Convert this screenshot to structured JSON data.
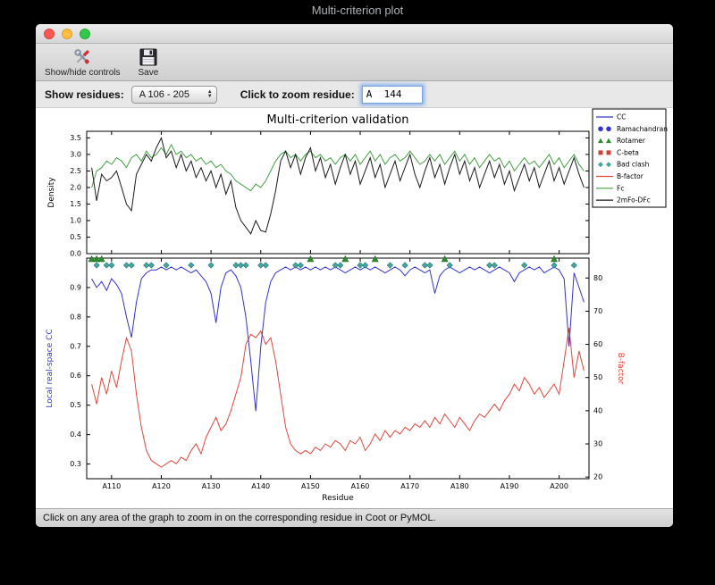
{
  "screen": {
    "title": "Multi-criterion plot"
  },
  "toolbar": {
    "show_hide_label": "Show/hide controls",
    "save_label": "Save"
  },
  "controls": {
    "show_residues_label": "Show residues:",
    "residue_range_value": "A 106 - 205",
    "zoom_residue_label": "Click to zoom residue:",
    "zoom_residue_value": "A  144"
  },
  "status": {
    "text": "Click on any area of the graph to zoom in on the corresponding residue in Coot or PyMOL."
  },
  "legend": [
    {
      "label": "CC",
      "type": "line",
      "color": "#3333cc"
    },
    {
      "label": "Ramachandran",
      "type": "circle",
      "color": "#3333cc"
    },
    {
      "label": "Rotamer",
      "type": "triangle",
      "color": "#2e8b2e"
    },
    {
      "label": "C-beta",
      "type": "square",
      "color": "#cc4433"
    },
    {
      "label": "Bad clash",
      "type": "diamond",
      "color": "#45a5a0"
    },
    {
      "label": "B-factor",
      "type": "line",
      "color": "#e0483e"
    },
    {
      "label": "Fc",
      "type": "line",
      "color": "#44a044"
    },
    {
      "label": "2mFo-DFc",
      "type": "line",
      "color": "#1a1a1a"
    }
  ],
  "chart_data": [
    {
      "type": "line",
      "title": "Multi-criterion validation",
      "ylabel": "Density",
      "x_start": 106,
      "xlim": [
        105,
        206
      ],
      "ylim": [
        0,
        3.7
      ],
      "yticks": [
        0.0,
        0.5,
        1.0,
        1.5,
        2.0,
        2.5,
        3.0,
        3.5
      ],
      "series": [
        {
          "name": "Fc",
          "color": "#44a044",
          "values": [
            2.0,
            2.5,
            2.6,
            2.8,
            2.7,
            2.9,
            2.8,
            2.6,
            2.9,
            3.0,
            2.8,
            3.1,
            2.9,
            3.0,
            3.2,
            3.0,
            3.3,
            3.0,
            3.1,
            2.9,
            3.0,
            2.8,
            2.9,
            2.7,
            2.8,
            2.6,
            2.7,
            2.5,
            2.4,
            2.2,
            2.1,
            2.0,
            1.9,
            2.1,
            2.0,
            2.2,
            2.5,
            2.8,
            3.0,
            3.1,
            2.9,
            3.0,
            2.8,
            3.0,
            3.1,
            2.9,
            3.0,
            2.8,
            2.9,
            2.7,
            2.9,
            3.0,
            2.8,
            3.0,
            2.7,
            2.9,
            3.1,
            2.8,
            3.0,
            2.7,
            2.9,
            3.0,
            2.8,
            2.9,
            3.1,
            2.9,
            2.7,
            2.8,
            3.0,
            2.8,
            3.0,
            2.7,
            2.9,
            3.1,
            2.8,
            3.0,
            2.7,
            2.9,
            2.6,
            2.8,
            3.0,
            2.8,
            2.9,
            2.6,
            2.8,
            2.5,
            2.7,
            2.9,
            2.7,
            2.8,
            2.6,
            2.8,
            3.0,
            2.7,
            2.9,
            2.6,
            2.8,
            3.0,
            2.7,
            2.5
          ]
        },
        {
          "name": "2mFo-DFc",
          "color": "#1a1a1a",
          "values": [
            2.6,
            1.6,
            2.4,
            2.2,
            2.3,
            2.5,
            2.0,
            1.5,
            1.3,
            2.4,
            2.7,
            3.0,
            2.8,
            3.2,
            3.5,
            2.9,
            3.1,
            2.6,
            3.0,
            2.5,
            2.8,
            2.3,
            2.6,
            2.2,
            2.5,
            2.0,
            2.4,
            1.8,
            2.2,
            1.4,
            1.0,
            0.8,
            0.6,
            1.0,
            0.7,
            0.65,
            1.2,
            1.9,
            2.8,
            3.1,
            2.6,
            3.0,
            2.4,
            2.9,
            3.2,
            2.5,
            2.9,
            2.3,
            2.7,
            2.1,
            2.6,
            3.0,
            2.4,
            2.8,
            2.1,
            2.5,
            2.9,
            2.3,
            2.7,
            2.0,
            2.4,
            2.8,
            2.2,
            2.6,
            3.0,
            2.4,
            2.0,
            2.5,
            2.9,
            2.3,
            2.7,
            2.1,
            2.6,
            3.0,
            2.4,
            2.8,
            2.2,
            2.6,
            2.0,
            2.4,
            2.8,
            2.3,
            2.7,
            2.1,
            2.5,
            1.9,
            2.3,
            2.7,
            2.2,
            2.6,
            2.0,
            2.4,
            2.8,
            2.2,
            2.6,
            2.1,
            2.5,
            2.9,
            2.4,
            2.0
          ]
        }
      ]
    },
    {
      "type": "line",
      "xlabel": "Residue",
      "ylabel_left": "Local real-space CC",
      "ylabel_right": "B-factor",
      "ylabel_left_color": "#3333cc",
      "ylabel_right_color": "#e0483e",
      "x_start": 106,
      "xlim": [
        105,
        206
      ],
      "xticks": [
        110,
        120,
        130,
        140,
        150,
        160,
        170,
        180,
        190,
        200
      ],
      "xtick_prefix": "A",
      "ylim_left": [
        0.25,
        1.0
      ],
      "yticks_left": [
        0.3,
        0.4,
        0.5,
        0.6,
        0.7,
        0.8,
        0.9
      ],
      "ylim_right": [
        19.5,
        86
      ],
      "yticks_right": [
        20,
        30,
        40,
        50,
        60,
        70,
        80
      ],
      "series": [
        {
          "name": "CC",
          "axis": "left",
          "color": "#3333cc",
          "values": [
            0.93,
            0.9,
            0.92,
            0.89,
            0.93,
            0.91,
            0.88,
            0.8,
            0.73,
            0.85,
            0.93,
            0.95,
            0.96,
            0.96,
            0.97,
            0.96,
            0.97,
            0.96,
            0.97,
            0.96,
            0.95,
            0.96,
            0.94,
            0.92,
            0.88,
            0.78,
            0.9,
            0.95,
            0.96,
            0.94,
            0.9,
            0.8,
            0.65,
            0.48,
            0.7,
            0.85,
            0.92,
            0.95,
            0.96,
            0.97,
            0.96,
            0.97,
            0.96,
            0.97,
            0.96,
            0.97,
            0.96,
            0.97,
            0.96,
            0.97,
            0.96,
            0.95,
            0.96,
            0.97,
            0.96,
            0.97,
            0.96,
            0.97,
            0.96,
            0.95,
            0.96,
            0.97,
            0.96,
            0.94,
            0.96,
            0.97,
            0.96,
            0.95,
            0.96,
            0.88,
            0.94,
            0.96,
            0.97,
            0.96,
            0.95,
            0.96,
            0.97,
            0.96,
            0.97,
            0.96,
            0.95,
            0.96,
            0.97,
            0.96,
            0.95,
            0.92,
            0.95,
            0.96,
            0.97,
            0.96,
            0.97,
            0.95,
            0.96,
            0.97,
            0.96,
            0.93,
            0.7,
            0.95,
            0.9,
            0.85
          ]
        },
        {
          "name": "B-factor",
          "axis": "right",
          "color": "#e0483e",
          "values": [
            48,
            42,
            50,
            45,
            52,
            47,
            55,
            62,
            58,
            45,
            35,
            28,
            25,
            24,
            23,
            24,
            25,
            24,
            26,
            25,
            28,
            30,
            27,
            32,
            35,
            38,
            34,
            36,
            40,
            45,
            50,
            60,
            63,
            62,
            64,
            60,
            62,
            55,
            45,
            35,
            30,
            28,
            27,
            28,
            27,
            29,
            28,
            30,
            29,
            31,
            30,
            28,
            31,
            30,
            32,
            28,
            30,
            33,
            31,
            34,
            32,
            34,
            33,
            35,
            34,
            36,
            35,
            37,
            35,
            38,
            36,
            39,
            37,
            35,
            38,
            36,
            34,
            37,
            39,
            38,
            40,
            42,
            40,
            43,
            45,
            48,
            46,
            50,
            48,
            45,
            47,
            44,
            46,
            48,
            45,
            55,
            65,
            50,
            58,
            52
          ]
        }
      ],
      "markers": [
        {
          "name": "Rotamer",
          "shape": "triangle",
          "color": "#2e8b2e",
          "residues": [
            106,
            107,
            108,
            150,
            157,
            163,
            177,
            199
          ]
        },
        {
          "name": "Bad clash",
          "shape": "diamond",
          "color": "#45a5a0",
          "residues": [
            107,
            109,
            110,
            113,
            114,
            117,
            118,
            121,
            126,
            130,
            135,
            136,
            137,
            140,
            141,
            147,
            148,
            155,
            156,
            160,
            161,
            166,
            169,
            173,
            174,
            178,
            186,
            187,
            193,
            199,
            203
          ]
        },
        {
          "name": "Ramachandran",
          "shape": "circle",
          "color": "#3333cc",
          "residues": []
        },
        {
          "name": "C-beta",
          "shape": "square",
          "color": "#cc4433",
          "residues": []
        }
      ]
    }
  ]
}
